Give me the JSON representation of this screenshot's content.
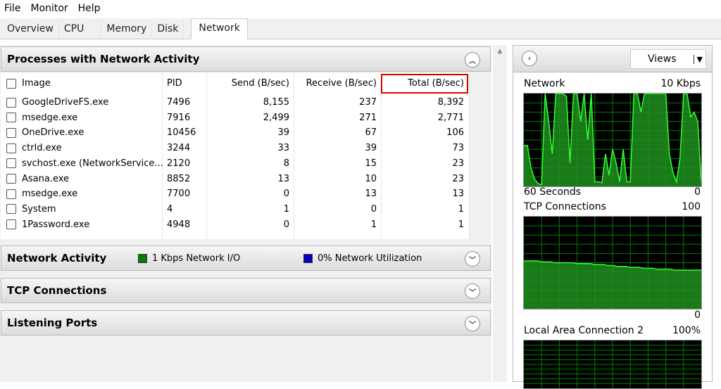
{
  "menu": [
    "File",
    "Monitor",
    "Help"
  ],
  "tabs": [
    {
      "label": "Overview"
    },
    {
      "label": "CPU"
    },
    {
      "label": "Memory"
    },
    {
      "label": "Disk"
    },
    {
      "label": "Network",
      "active": true
    }
  ],
  "processes": {
    "title": "Processes with Network Activity",
    "columns": [
      "Image",
      "PID",
      "Send (B/sec)",
      "Receive (B/sec)",
      "Total (B/sec)"
    ],
    "sorted_column": "Total (B/sec)",
    "rows": [
      [
        "GoogleDriveFS.exe",
        "7496",
        "8,155",
        "237",
        "8,392"
      ],
      [
        "msedge.exe",
        "7916",
        "2,499",
        "271",
        "2,771"
      ],
      [
        "OneDrive.exe",
        "10456",
        "39",
        "67",
        "106"
      ],
      [
        "ctrld.exe",
        "3244",
        "33",
        "39",
        "73"
      ],
      [
        "svchost.exe (NetworkService...",
        "2120",
        "8",
        "15",
        "23"
      ],
      [
        "Asana.exe",
        "8852",
        "13",
        "10",
        "23"
      ],
      [
        "msedge.exe",
        "7700",
        "0",
        "13",
        "13"
      ],
      [
        "System",
        "4",
        "1",
        "0",
        "1"
      ],
      [
        "1Password.exe",
        "4948",
        "0",
        "1",
        "1"
      ]
    ]
  },
  "network_activity": {
    "title": "Network Activity",
    "legend_io": "1 Kbps Network I/O",
    "legend_util": "0% Network Utilization",
    "io_color": "#008000",
    "util_color": "#0000c0"
  },
  "tcp": {
    "title": "TCP Connections"
  },
  "listening": {
    "title": "Listening Ports"
  },
  "right": {
    "views_label": "Views",
    "network": {
      "label": "Network",
      "max": "10 Kbps",
      "time": "60 Seconds",
      "min": "0",
      "values_pct": [
        44,
        44,
        20,
        8,
        3,
        2,
        100,
        70,
        35,
        100,
        100,
        100,
        97,
        25,
        100,
        100,
        70,
        100,
        50,
        100,
        5,
        5,
        4,
        35,
        12,
        40,
        25,
        5,
        40,
        5,
        5,
        100,
        100,
        80,
        100,
        100,
        100,
        100,
        100,
        100,
        100,
        35,
        15,
        5,
        30,
        100,
        100,
        75,
        80,
        70,
        5
      ]
    },
    "tcp": {
      "label": "TCP Connections",
      "max": "100",
      "min": "0",
      "values_pct": [
        52,
        52,
        52,
        52,
        51,
        51,
        51,
        50,
        50,
        50,
        50,
        50,
        49,
        49,
        49,
        49,
        48,
        48,
        48,
        47,
        47,
        46,
        46,
        46,
        45,
        45,
        45,
        44,
        44,
        44,
        43,
        43,
        43,
        43,
        42,
        42,
        42,
        42,
        42,
        42,
        42
      ]
    },
    "lan": {
      "label": "Local Area Connection 2",
      "max": "100%"
    }
  },
  "colors": {
    "graph_line": "#33ff33",
    "graph_fill": "#1f8f1f",
    "grid": "#008000",
    "highlight": "#dd0000"
  }
}
